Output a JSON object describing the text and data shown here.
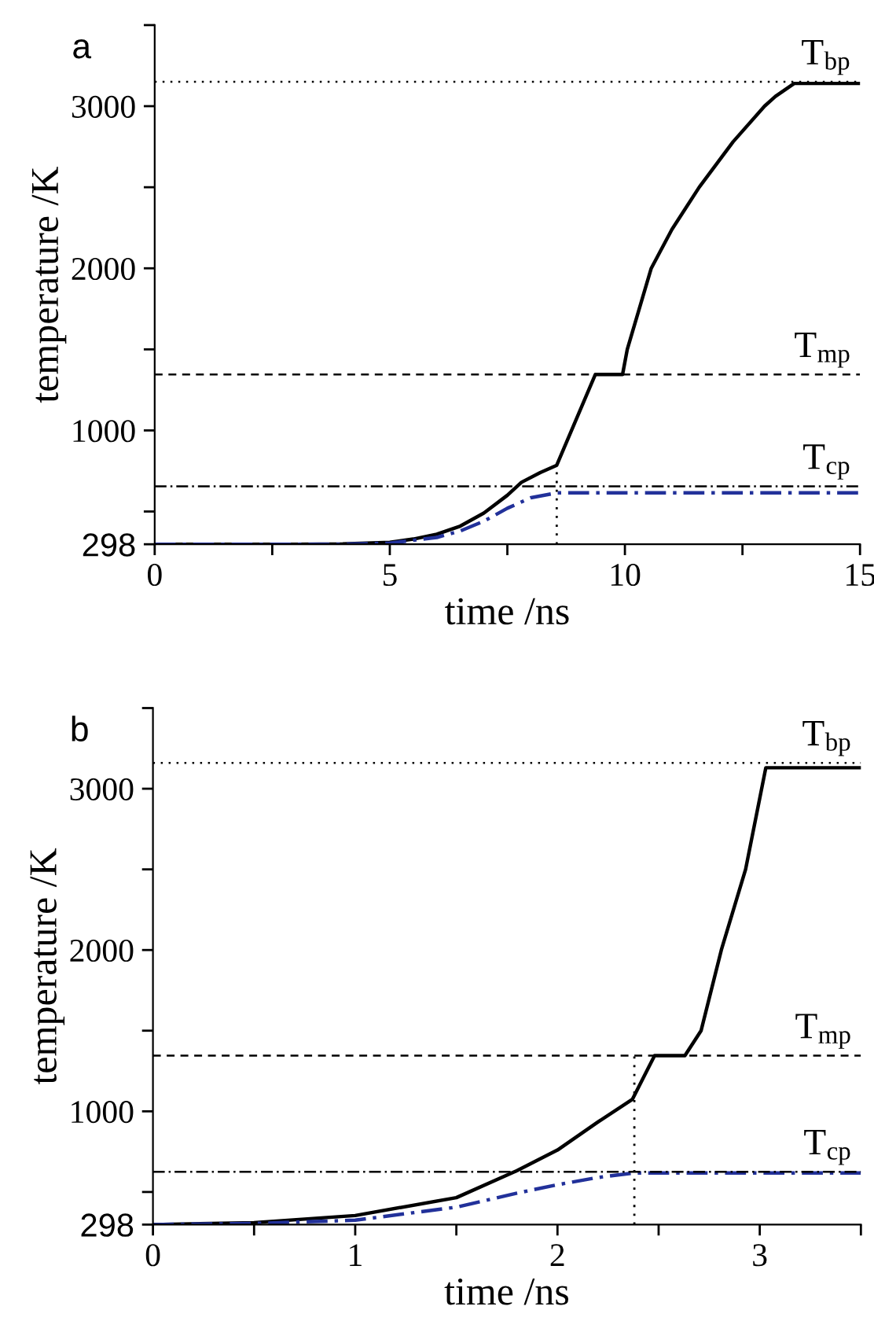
{
  "chart_data": [
    {
      "type": "line",
      "title": "a",
      "xlabel": "time /ns",
      "ylabel": "temperature /K",
      "xlim": [
        0,
        15
      ],
      "xticks": [
        0,
        {
          "value": 2.5,
          "label": null
        },
        5,
        {
          "value": 7.5,
          "label": null
        },
        10,
        {
          "value": 12.5,
          "label": null
        },
        15
      ],
      "ylim": [
        298,
        3500
      ],
      "yticks": [
        298,
        {
          "value": 500,
          "label": null
        },
        1000,
        {
          "value": 1500,
          "label": null
        },
        2000,
        {
          "value": 2500,
          "label": null
        },
        3000,
        {
          "value": 3500,
          "label": null
        }
      ],
      "grid": false,
      "legend": false,
      "marker": "none",
      "series": [
        {
          "color": "#000000",
          "line_style": "solid",
          "x": [
            0,
            3,
            4,
            5,
            5.5,
            6,
            6.5,
            7,
            7.5,
            7.8,
            8.2,
            8.55,
            9.37,
            9.95,
            10.05,
            10.56,
            11.0,
            11.58,
            12.3,
            12.97,
            13.2,
            13.6,
            15
          ],
          "values": [
            298,
            298,
            300,
            310,
            330,
            360,
            410,
            490,
            600,
            680,
            740,
            785,
            1345,
            1345,
            1500,
            2000,
            2240,
            2500,
            2780,
            3000,
            3060,
            3140,
            3140
          ]
        },
        {
          "color": "#22319a",
          "line_style": "dashdot",
          "x": [
            0,
            4,
            5,
            6,
            6.5,
            7,
            7.5,
            8,
            8.55,
            15
          ],
          "values": [
            298,
            298,
            305,
            340,
            380,
            440,
            520,
            585,
            615,
            615
          ]
        },
        {
          "color": "#000000",
          "line_style": "dotted",
          "x": [
            8.55,
            8.55
          ],
          "values": [
            298,
            785
          ]
        }
      ],
      "ref_lines": [
        {
          "axis": "y",
          "value": 3150,
          "line_style": "dotted",
          "color": "#000000",
          "label": "T$_{bp}$"
        },
        {
          "axis": "y",
          "value": 1345,
          "line_style": "dashed",
          "color": "#000000",
          "label": "T$_{mp}$"
        },
        {
          "axis": "y",
          "value": 655,
          "line_style": "dashdot",
          "color": "#000000",
          "label": "T$_{cp}$"
        }
      ]
    },
    {
      "type": "line",
      "title": "b",
      "xlabel": "time /ns",
      "ylabel": "temperature /K",
      "xlim": [
        0,
        3.5
      ],
      "xticks": [
        0,
        {
          "value": 0.5,
          "label": null
        },
        1,
        {
          "value": 1.5,
          "label": null
        },
        2,
        {
          "value": 2.5,
          "label": null
        },
        3,
        {
          "value": 3.5,
          "label": null
        }
      ],
      "ylim": [
        298,
        3500
      ],
      "yticks": [
        298,
        {
          "value": 500,
          "label": null
        },
        1000,
        {
          "value": 1500,
          "label": null
        },
        2000,
        {
          "value": 2500,
          "label": null
        },
        3000,
        {
          "value": 3500,
          "label": null
        }
      ],
      "grid": false,
      "legend": false,
      "marker": "none",
      "series": [
        {
          "color": "#000000",
          "line_style": "solid",
          "x": [
            0,
            0.5,
            1,
            1.5,
            1.8,
            2.0,
            2.2,
            2.37,
            2.48,
            2.63,
            2.71,
            2.81,
            2.93,
            3.03,
            3.5
          ],
          "values": [
            298,
            310,
            354,
            465,
            632,
            760,
            934,
            1074,
            1345,
            1345,
            1500,
            2000,
            2500,
            3130,
            3130
          ]
        },
        {
          "color": "#22319a",
          "line_style": "dashdot",
          "x": [
            0,
            0.5,
            1,
            1.5,
            1.8,
            2.0,
            2.2,
            2.38,
            3.5
          ],
          "values": [
            298,
            305,
            325,
            406,
            493,
            545,
            590,
            618,
            618
          ]
        },
        {
          "color": "#000000",
          "line_style": "dotted",
          "x": [
            2.38,
            2.38
          ],
          "values": [
            298,
            1345
          ]
        }
      ],
      "ref_lines": [
        {
          "axis": "y",
          "value": 3160,
          "line_style": "dotted",
          "color": "#000000",
          "label": "T$_{bp}$"
        },
        {
          "axis": "y",
          "value": 1345,
          "line_style": "dashed",
          "color": "#000000",
          "label": "T$_{mp}$"
        },
        {
          "axis": "y",
          "value": 625,
          "line_style": "dashdot",
          "color": "#000000",
          "label": "T$_{cp}$"
        }
      ]
    }
  ]
}
